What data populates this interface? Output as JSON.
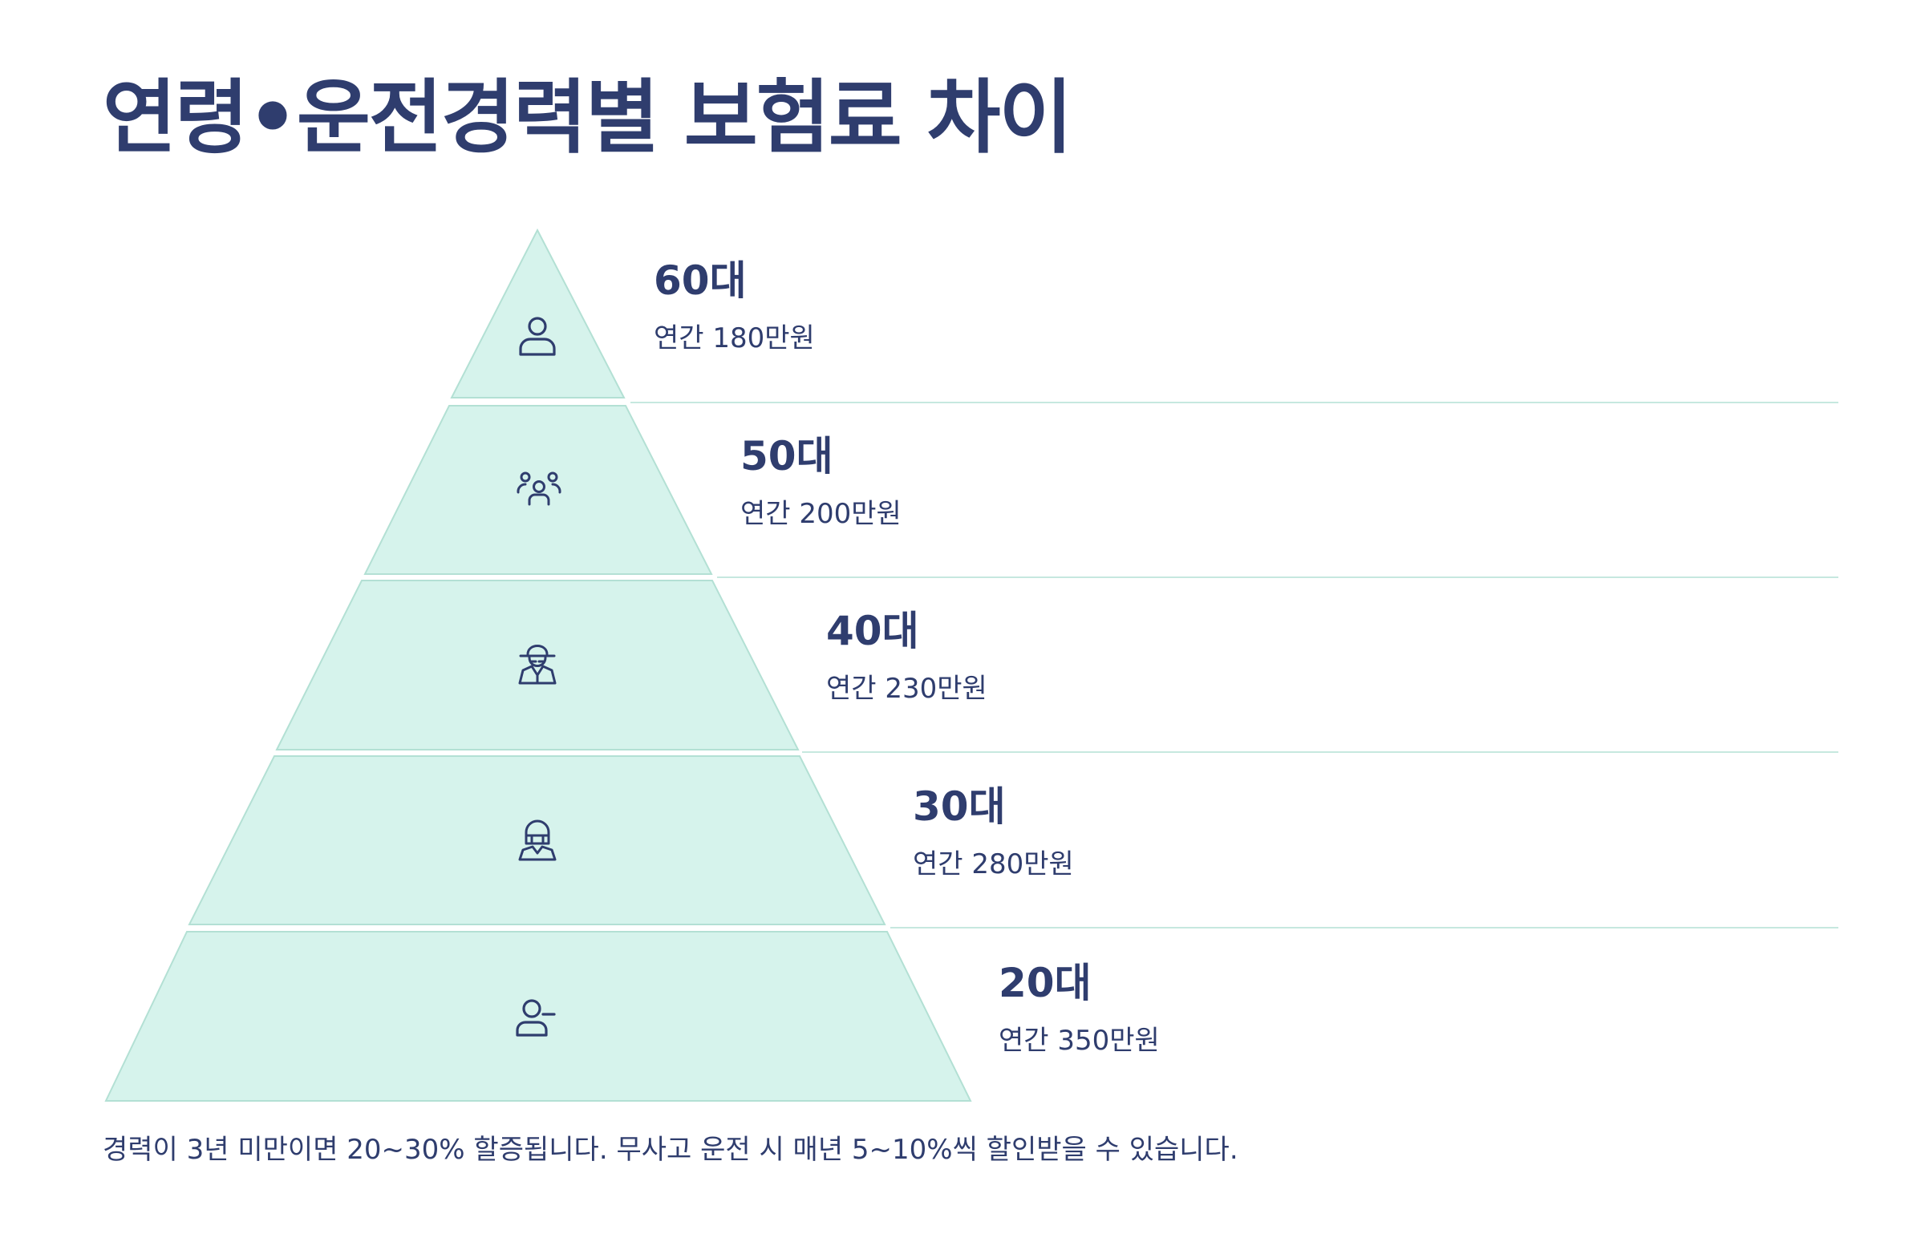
{
  "title": "연령•운전경력별 보험료 차이",
  "colors": {
    "tier_fill": "#d6f3ec",
    "tier_stroke": "#b3e0d4",
    "divider": "#c6e8df",
    "text": "#2f3d6e"
  },
  "tiers": [
    {
      "age_label": "60대",
      "premium_label": "연간 180만원",
      "icon": "person-icon"
    },
    {
      "age_label": "50대",
      "premium_label": "연간 200만원",
      "icon": "group-icon"
    },
    {
      "age_label": "40대",
      "premium_label": "연간 230만원",
      "icon": "detective-icon"
    },
    {
      "age_label": "30대",
      "premium_label": "연간 280만원",
      "icon": "helmet-person-icon"
    },
    {
      "age_label": "20대",
      "premium_label": "연간 350만원",
      "icon": "user-minus-icon"
    }
  ],
  "footnote": "경력이 3년 미만이면 20~30% 할증됩니다. 무사고 운전 시 매년 5~10%씩 할인받을 수 있습니다."
}
